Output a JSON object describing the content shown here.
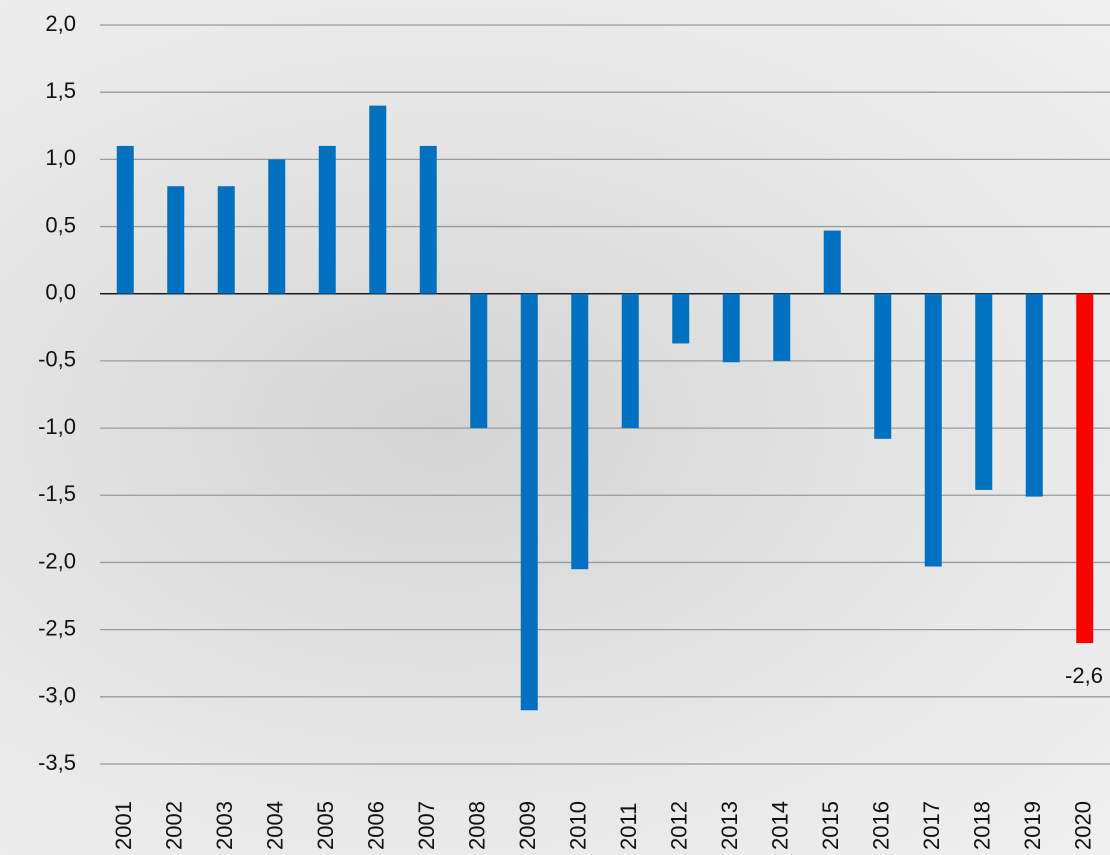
{
  "chart_data": {
    "type": "bar",
    "categories": [
      "2001",
      "2002",
      "2003",
      "2004",
      "2005",
      "2006",
      "2007",
      "2008",
      "2009",
      "2010",
      "2011",
      "2012",
      "2013",
      "2014",
      "2015",
      "2016",
      "2017",
      "2018",
      "2019",
      "2020"
    ],
    "values": [
      1.1,
      0.8,
      0.8,
      1.0,
      1.1,
      1.4,
      1.1,
      -1.0,
      -3.1,
      -2.05,
      -1.0,
      -0.37,
      -0.51,
      -0.5,
      0.47,
      -1.08,
      -2.03,
      -1.46,
      -1.51,
      -2.6
    ],
    "value_labels": [
      null,
      null,
      null,
      null,
      null,
      null,
      null,
      null,
      null,
      null,
      null,
      null,
      null,
      null,
      null,
      null,
      null,
      null,
      null,
      "-2,6"
    ],
    "colors": [
      "#0070c0",
      "#0070c0",
      "#0070c0",
      "#0070c0",
      "#0070c0",
      "#0070c0",
      "#0070c0",
      "#0070c0",
      "#0070c0",
      "#0070c0",
      "#0070c0",
      "#0070c0",
      "#0070c0",
      "#0070c0",
      "#0070c0",
      "#0070c0",
      "#0070c0",
      "#0070c0",
      "#0070c0",
      "#ff0000"
    ],
    "ylim": [
      -3.5,
      2.0
    ],
    "yticks": [
      {
        "value": 2.0,
        "label": "2,0"
      },
      {
        "value": 1.5,
        "label": "1,5"
      },
      {
        "value": 1.0,
        "label": "1,0"
      },
      {
        "value": 0.5,
        "label": "0,5"
      },
      {
        "value": 0.0,
        "label": "0,0"
      },
      {
        "value": -0.5,
        "label": "-0,5"
      },
      {
        "value": -1.0,
        "label": "-1,0"
      },
      {
        "value": -1.5,
        "label": "-1,5"
      },
      {
        "value": -2.0,
        "label": "-2,0"
      },
      {
        "value": -2.5,
        "label": "-2,5"
      },
      {
        "value": -3.0,
        "label": "-3,0"
      },
      {
        "value": -3.5,
        "label": "-3,5"
      }
    ],
    "grid": true
  }
}
